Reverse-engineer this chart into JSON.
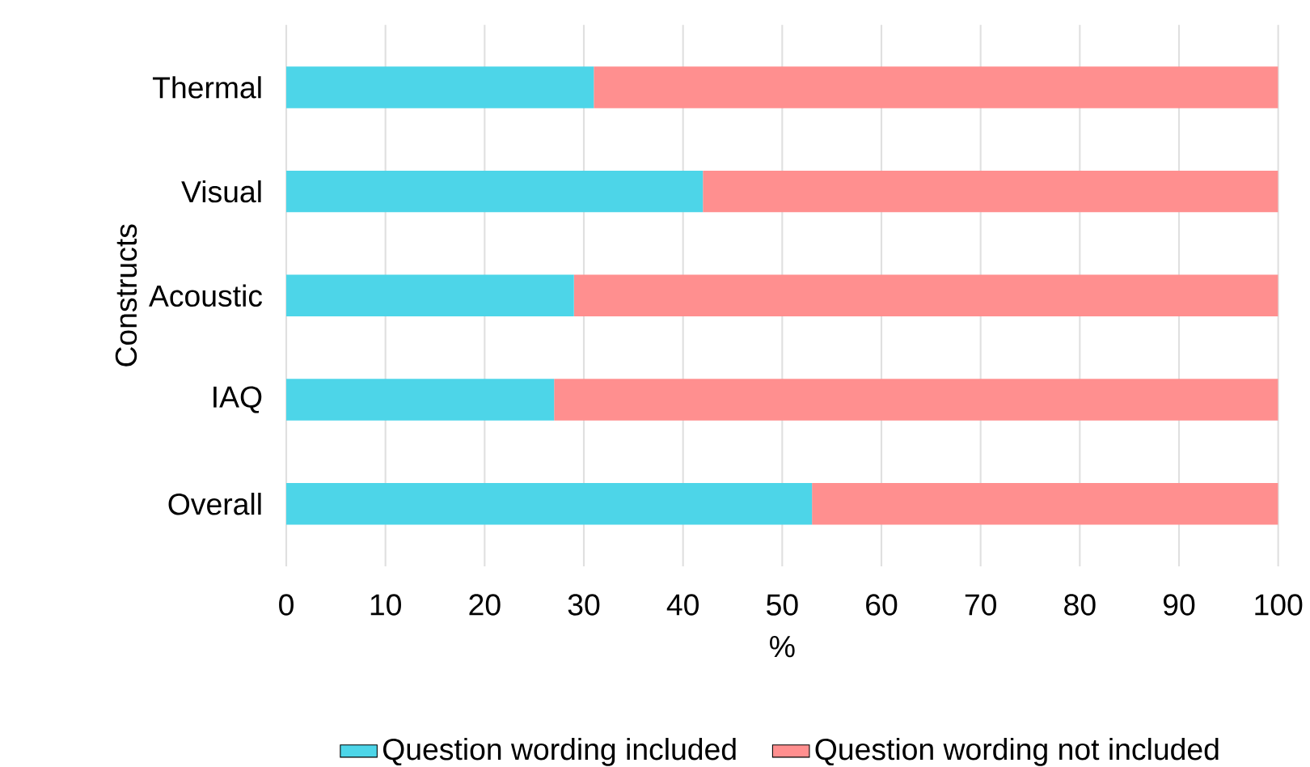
{
  "chart_data": {
    "type": "bar",
    "orientation": "horizontal",
    "stacked": true,
    "ylabel": "Constructs",
    "xlabel": "%",
    "categories": [
      "Thermal",
      "Visual",
      "Acoustic",
      "IAQ",
      "Overall"
    ],
    "series": [
      {
        "name": "Question wording included",
        "color": "#4dd5e8",
        "values": [
          31,
          42,
          29,
          27,
          53
        ]
      },
      {
        "name": "Question wording not included",
        "color": "#ff8f8f",
        "values": [
          69,
          58,
          71,
          73,
          47
        ]
      }
    ],
    "xlim": [
      0,
      100
    ],
    "xticks": [
      0,
      10,
      20,
      30,
      40,
      50,
      60,
      70,
      80,
      90,
      100
    ],
    "grid": "x",
    "legend": "bottom"
  }
}
